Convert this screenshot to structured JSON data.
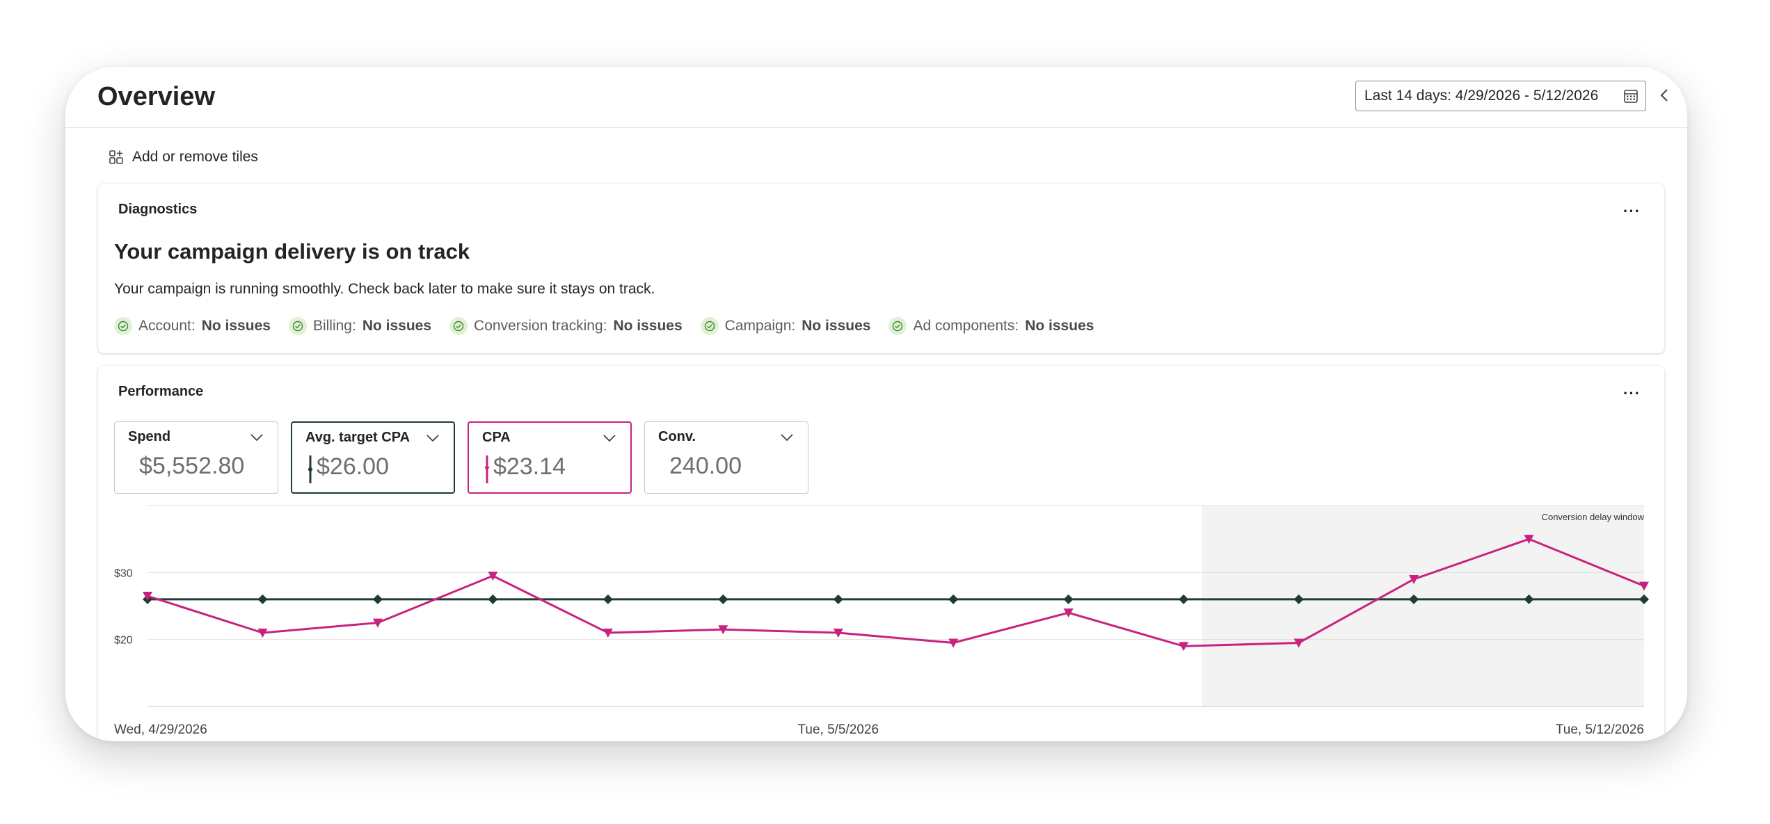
{
  "header": {
    "title": "Overview",
    "date_range": "Last 14 days: 4/29/2026 - 5/12/2026"
  },
  "toolbar": {
    "add_tiles_label": "Add or remove tiles"
  },
  "diagnostics": {
    "title": "Diagnostics",
    "heading": "Your campaign delivery is on track",
    "subtext": "Your campaign is running smoothly. Check back later to make sure it stays on track.",
    "checks": [
      {
        "label": "Account:",
        "status": "No issues"
      },
      {
        "label": "Billing:",
        "status": "No issues"
      },
      {
        "label": "Conversion tracking:",
        "status": "No issues"
      },
      {
        "label": "Campaign:",
        "status": "No issues"
      },
      {
        "label": "Ad components:",
        "status": "No issues"
      }
    ]
  },
  "performance": {
    "title": "Performance",
    "metrics": [
      {
        "label": "Spend",
        "value": "$5,552.80"
      },
      {
        "label": "Avg. target CPA",
        "value": "$26.00"
      },
      {
        "label": "CPA",
        "value": "$23.14"
      },
      {
        "label": "Conv.",
        "value": "240.00"
      }
    ]
  },
  "colors": {
    "target_series": "#1f3b35",
    "cpa_series": "#c9217f",
    "check_bg": "#dff1d6",
    "check_icon": "#3d8a2a"
  },
  "icons": [
    "calendar-icon",
    "chevron-left-icon",
    "add-tiles-icon",
    "more-icon",
    "check-circle-icon",
    "chevron-down-icon"
  ],
  "chart_data": {
    "type": "line",
    "x": [
      "4/29/2026",
      "4/30/2026",
      "5/1/2026",
      "5/2/2026",
      "5/3/2026",
      "5/4/2026",
      "5/5/2026",
      "5/6/2026",
      "5/7/2026",
      "5/8/2026",
      "5/9/2026",
      "5/10/2026",
      "5/11/2026",
      "5/12/2026"
    ],
    "x_tick_labels": [
      "Wed, 4/29/2026",
      "Tue, 5/5/2026",
      "Tue, 5/12/2026"
    ],
    "y_tick_labels": [
      "$30",
      "$20"
    ],
    "ylim": [
      10,
      40
    ],
    "series": [
      {
        "name": "Avg. target CPA",
        "values": [
          26,
          26,
          26,
          26,
          26,
          26,
          26,
          26,
          26,
          26,
          26,
          26,
          26,
          26
        ]
      },
      {
        "name": "CPA",
        "values": [
          26.5,
          21,
          22.5,
          29.5,
          21,
          21.5,
          21,
          19.5,
          24,
          19,
          19.5,
          29,
          35,
          28
        ]
      }
    ],
    "annotation": "Conversion delay window",
    "shaded_from": "5/8/2026",
    "grid": true
  }
}
